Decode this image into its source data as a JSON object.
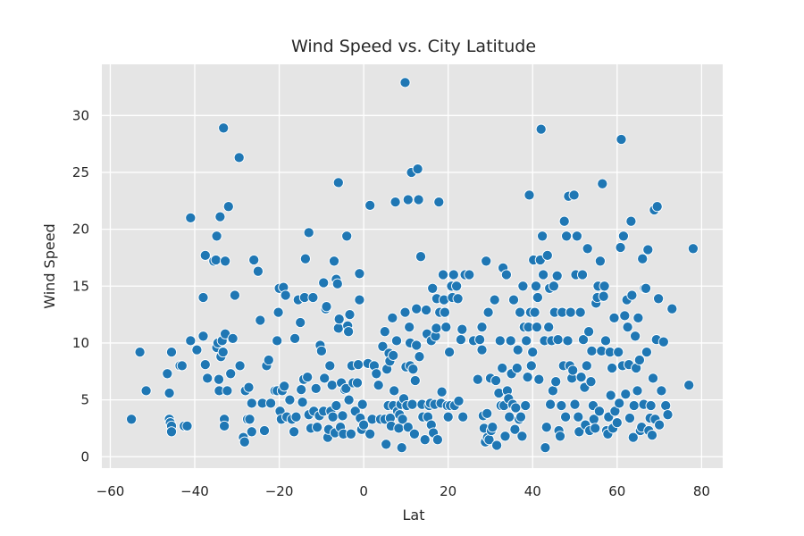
{
  "chart_data": {
    "type": "scatter",
    "title": "Wind Speed vs. City Latitude",
    "xlabel": "Lat",
    "ylabel": "Wind Speed",
    "xlim": [
      -62,
      85
    ],
    "ylim": [
      -1,
      34.5
    ],
    "xticks": [
      -60,
      -40,
      -20,
      0,
      20,
      40,
      60,
      80
    ],
    "yticks": [
      0,
      5,
      10,
      15,
      20,
      25,
      30
    ],
    "grid": true,
    "legend": "none",
    "colors": {
      "background": "#e5e5e5",
      "grid": "#ffffff",
      "marker": "#1f77b4",
      "marker_edge": "#ffffff"
    },
    "points": [
      [
        -55,
        3.3
      ],
      [
        -53,
        9.2
      ],
      [
        -51.5,
        5.8
      ],
      [
        -46.5,
        7.3
      ],
      [
        -46,
        5.6
      ],
      [
        -46,
        3.3
      ],
      [
        -45.8,
        3.0
      ],
      [
        -45.5,
        2.7
      ],
      [
        -45.5,
        2.2
      ],
      [
        -45.5,
        9.2
      ],
      [
        -43.5,
        8.0
      ],
      [
        -43,
        8.0
      ],
      [
        -42.5,
        2.7
      ],
      [
        -41.8,
        2.7
      ],
      [
        -41,
        10.2
      ],
      [
        -41,
        21.0
      ],
      [
        -39.5,
        9.4
      ],
      [
        -38,
        10.6
      ],
      [
        -38,
        14.0
      ],
      [
        -37.5,
        8.1
      ],
      [
        -37.5,
        17.7
      ],
      [
        -37,
        6.9
      ],
      [
        -35.5,
        17.2
      ],
      [
        -35,
        17.3
      ],
      [
        -34.8,
        19.4
      ],
      [
        -34.8,
        9.6
      ],
      [
        -34.5,
        10.0
      ],
      [
        -34.3,
        6.8
      ],
      [
        -34.2,
        5.8
      ],
      [
        -34,
        21.1
      ],
      [
        -33.8,
        8.8
      ],
      [
        -33.5,
        10.2
      ],
      [
        -33.3,
        9.2
      ],
      [
        -33.2,
        28.9
      ],
      [
        -33,
        3.3
      ],
      [
        -33,
        2.7
      ],
      [
        -32.8,
        17.2
      ],
      [
        -32.8,
        10.8
      ],
      [
        -32.3,
        5.8
      ],
      [
        -32,
        22.0
      ],
      [
        -31.5,
        7.3
      ],
      [
        -31,
        10.4
      ],
      [
        -30.5,
        14.2
      ],
      [
        -29.5,
        26.3
      ],
      [
        -29.3,
        8.0
      ],
      [
        -28.5,
        1.7
      ],
      [
        -28.2,
        1.3
      ],
      [
        -28,
        5.8
      ],
      [
        -27.5,
        3.3
      ],
      [
        -27.2,
        6.1
      ],
      [
        -27,
        3.3
      ],
      [
        -26.5,
        2.2
      ],
      [
        -26.5,
        4.7
      ],
      [
        -26,
        17.3
      ],
      [
        -25,
        16.3
      ],
      [
        -24.5,
        12.0
      ],
      [
        -24,
        4.7
      ],
      [
        -23.5,
        2.3
      ],
      [
        -23,
        8.0
      ],
      [
        -22.5,
        8.5
      ],
      [
        -22,
        4.7
      ],
      [
        -21,
        5.8
      ],
      [
        -20.5,
        10.2
      ],
      [
        -20.5,
        5.8
      ],
      [
        -20.2,
        12.7
      ],
      [
        -20,
        14.8
      ],
      [
        -19.8,
        4.0
      ],
      [
        -19.5,
        3.3
      ],
      [
        -19.3,
        5.8
      ],
      [
        -19,
        14.9
      ],
      [
        -18.8,
        6.2
      ],
      [
        -18.5,
        14.2
      ],
      [
        -18.2,
        3.5
      ],
      [
        -17.5,
        5.0
      ],
      [
        -17,
        3.3
      ],
      [
        -16.5,
        2.2
      ],
      [
        -16.3,
        10.4
      ],
      [
        -16,
        3.5
      ],
      [
        -15.5,
        13.8
      ],
      [
        -15,
        11.8
      ],
      [
        -14.8,
        5.9
      ],
      [
        -14.5,
        4.8
      ],
      [
        -14.2,
        6.8
      ],
      [
        -14,
        14.0
      ],
      [
        -13.8,
        17.4
      ],
      [
        -13.3,
        7.0
      ],
      [
        -13,
        19.7
      ],
      [
        -13,
        3.7
      ],
      [
        -12.5,
        2.5
      ],
      [
        -12,
        14.0
      ],
      [
        -11.8,
        4.0
      ],
      [
        -11.3,
        6.0
      ],
      [
        -11,
        2.6
      ],
      [
        -10.5,
        3.6
      ],
      [
        -10.3,
        9.8
      ],
      [
        -10,
        9.3
      ],
      [
        -9.5,
        4.0
      ],
      [
        -9.5,
        15.3
      ],
      [
        -9.3,
        6.9
      ],
      [
        -9,
        13.0
      ],
      [
        -8.8,
        13.2
      ],
      [
        -8.5,
        1.7
      ],
      [
        -8.3,
        2.4
      ],
      [
        -8,
        8.0
      ],
      [
        -7.8,
        4.0
      ],
      [
        -7.5,
        6.3
      ],
      [
        -7.3,
        3.5
      ],
      [
        -7,
        17.2
      ],
      [
        -6.8,
        2.1
      ],
      [
        -6.5,
        4.5
      ],
      [
        -6.5,
        15.6
      ],
      [
        -6.2,
        15.2
      ],
      [
        -6,
        24.1
      ],
      [
        -6,
        11.3
      ],
      [
        -5.8,
        12.1
      ],
      [
        -5.5,
        2.6
      ],
      [
        -5.3,
        6.5
      ],
      [
        -5,
        3.6
      ],
      [
        -4.8,
        2.0
      ],
      [
        -4.5,
        5.9
      ],
      [
        -4.2,
        6.0
      ],
      [
        -4,
        19.4
      ],
      [
        -3.8,
        11.5
      ],
      [
        -3.6,
        11.0
      ],
      [
        -3.5,
        5.0
      ],
      [
        -3.3,
        12.5
      ],
      [
        -3,
        2.0
      ],
      [
        -2.8,
        8.0
      ],
      [
        -2.5,
        6.5
      ],
      [
        -2,
        4.0
      ],
      [
        -1.5,
        6.5
      ],
      [
        -1.3,
        8.1
      ],
      [
        -1,
        16.1
      ],
      [
        -1,
        13.8
      ],
      [
        -0.8,
        3.4
      ],
      [
        -0.5,
        2.4
      ],
      [
        -0.3,
        4.6
      ],
      [
        0,
        2.8
      ],
      [
        1,
        8.2
      ],
      [
        1.5,
        22.1
      ],
      [
        1.5,
        2.0
      ],
      [
        2,
        3.3
      ],
      [
        2.5,
        8.0
      ],
      [
        3,
        7.3
      ],
      [
        3.5,
        6.3
      ],
      [
        4,
        3.3
      ],
      [
        4.5,
        9.7
      ],
      [
        5,
        3.3
      ],
      [
        5,
        11.0
      ],
      [
        5.3,
        1.1
      ],
      [
        5.5,
        7.7
      ],
      [
        5.8,
        4.5
      ],
      [
        6,
        9.1
      ],
      [
        6.2,
        8.4
      ],
      [
        6.3,
        3.4
      ],
      [
        6.5,
        2.7
      ],
      [
        6.8,
        12.2
      ],
      [
        7,
        4.5
      ],
      [
        7,
        8.9
      ],
      [
        7.2,
        5.8
      ],
      [
        7.5,
        22.4
      ],
      [
        7.8,
        10.2
      ],
      [
        8,
        4.0
      ],
      [
        8.3,
        2.5
      ],
      [
        8.5,
        3.7
      ],
      [
        8.8,
        4.6
      ],
      [
        9,
        0.8
      ],
      [
        9.2,
        3.3
      ],
      [
        9.5,
        5.1
      ],
      [
        9.8,
        12.7
      ],
      [
        9.8,
        32.9
      ],
      [
        10,
        7.9
      ],
      [
        10.2,
        4.5
      ],
      [
        10.5,
        22.6
      ],
      [
        10.5,
        2.6
      ],
      [
        10.8,
        11.4
      ],
      [
        11,
        10.0
      ],
      [
        11,
        8.0
      ],
      [
        11.3,
        25.0
      ],
      [
        11.5,
        4.6
      ],
      [
        11.7,
        7.7
      ],
      [
        12,
        2.0
      ],
      [
        12.2,
        6.7
      ],
      [
        12.5,
        9.8
      ],
      [
        12.5,
        13.0
      ],
      [
        12.8,
        25.3
      ],
      [
        13,
        22.6
      ],
      [
        13.2,
        8.8
      ],
      [
        13.5,
        17.6
      ],
      [
        13.8,
        4.6
      ],
      [
        14,
        3.5
      ],
      [
        14.5,
        1.5
      ],
      [
        14.8,
        12.9
      ],
      [
        15,
        10.8
      ],
      [
        15.2,
        3.5
      ],
      [
        15.5,
        4.5
      ],
      [
        15.8,
        4.7
      ],
      [
        16,
        2.8
      ],
      [
        16,
        10.2
      ],
      [
        16.3,
        14.8
      ],
      [
        16.5,
        2.1
      ],
      [
        16.8,
        4.6
      ],
      [
        17,
        10.6
      ],
      [
        17.2,
        11.3
      ],
      [
        17.3,
        13.9
      ],
      [
        17.5,
        1.5
      ],
      [
        17.8,
        22.4
      ],
      [
        18,
        12.7
      ],
      [
        18.3,
        4.7
      ],
      [
        18.5,
        5.7
      ],
      [
        18.8,
        16.0
      ],
      [
        19,
        13.8
      ],
      [
        19.2,
        12.7
      ],
      [
        19.5,
        11.4
      ],
      [
        19.8,
        4.5
      ],
      [
        20,
        3.5
      ],
      [
        20.3,
        9.2
      ],
      [
        20.5,
        4.5
      ],
      [
        20.8,
        15.0
      ],
      [
        21,
        14.0
      ],
      [
        21.3,
        16.0
      ],
      [
        21.5,
        4.5
      ],
      [
        22,
        15.0
      ],
      [
        22.3,
        13.9
      ],
      [
        22.5,
        4.9
      ],
      [
        23,
        10.3
      ],
      [
        23.3,
        11.2
      ],
      [
        23.5,
        3.5
      ],
      [
        24,
        16.0
      ],
      [
        25,
        16.0
      ],
      [
        26,
        10.2
      ],
      [
        27,
        6.8
      ],
      [
        27.5,
        10.3
      ],
      [
        28,
        9.4
      ],
      [
        28,
        11.4
      ],
      [
        28.3,
        3.6
      ],
      [
        28.5,
        2.5
      ],
      [
        28.8,
        1.3
      ],
      [
        29,
        17.2
      ],
      [
        29.2,
        3.8
      ],
      [
        29.3,
        1.7
      ],
      [
        29.5,
        12.7
      ],
      [
        29.7,
        1.5
      ],
      [
        30,
        6.9
      ],
      [
        30.2,
        2.3
      ],
      [
        30.5,
        2.6
      ],
      [
        31,
        13.8
      ],
      [
        31.3,
        6.7
      ],
      [
        31.5,
        1.0
      ],
      [
        32,
        5.6
      ],
      [
        32.3,
        10.2
      ],
      [
        32.5,
        4.5
      ],
      [
        32.8,
        7.8
      ],
      [
        33,
        16.6
      ],
      [
        33.2,
        4.5
      ],
      [
        33.5,
        1.8
      ],
      [
        33.8,
        16.0
      ],
      [
        34,
        5.8
      ],
      [
        34.3,
        5.1
      ],
      [
        34.5,
        3.5
      ],
      [
        34.8,
        10.2
      ],
      [
        35,
        7.3
      ],
      [
        35.3,
        4.6
      ],
      [
        35.5,
        13.8
      ],
      [
        35.8,
        2.4
      ],
      [
        36,
        4.3
      ],
      [
        36.3,
        7.8
      ],
      [
        36.5,
        9.4
      ],
      [
        36.8,
        3.3
      ],
      [
        37,
        12.7
      ],
      [
        37.2,
        3.5
      ],
      [
        37.5,
        1.8
      ],
      [
        37.7,
        15.0
      ],
      [
        38,
        11.4
      ],
      [
        38.3,
        4.5
      ],
      [
        38.5,
        10.2
      ],
      [
        38.8,
        7.0
      ],
      [
        39,
        11.4
      ],
      [
        39.2,
        23.0
      ],
      [
        39.5,
        12.7
      ],
      [
        39.7,
        8.0
      ],
      [
        40,
        9.2
      ],
      [
        40.2,
        17.3
      ],
      [
        40.5,
        12.7
      ],
      [
        40.8,
        15.0
      ],
      [
        41,
        11.4
      ],
      [
        41.2,
        14.0
      ],
      [
        41.5,
        6.8
      ],
      [
        41.8,
        17.3
      ],
      [
        42,
        28.8
      ],
      [
        42.3,
        19.4
      ],
      [
        42.5,
        16.0
      ],
      [
        42.8,
        10.2
      ],
      [
        43,
        0.8
      ],
      [
        43.3,
        2.6
      ],
      [
        43.5,
        17.7
      ],
      [
        43.8,
        11.4
      ],
      [
        44,
        14.8
      ],
      [
        44.2,
        4.6
      ],
      [
        44.5,
        10.2
      ],
      [
        44.8,
        5.8
      ],
      [
        45,
        15.0
      ],
      [
        45.2,
        12.7
      ],
      [
        45.5,
        6.6
      ],
      [
        45.8,
        15.9
      ],
      [
        46,
        10.3
      ],
      [
        46.2,
        2.3
      ],
      [
        46.5,
        1.8
      ],
      [
        46.8,
        4.5
      ],
      [
        47,
        12.7
      ],
      [
        47.3,
        8.0
      ],
      [
        47.5,
        20.7
      ],
      [
        47.8,
        3.5
      ],
      [
        48,
        19.4
      ],
      [
        48.3,
        10.2
      ],
      [
        48.5,
        22.9
      ],
      [
        48.8,
        8.0
      ],
      [
        49,
        12.7
      ],
      [
        49.3,
        6.9
      ],
      [
        49.5,
        7.6
      ],
      [
        49.8,
        23.0
      ],
      [
        50,
        4.6
      ],
      [
        50.2,
        16.0
      ],
      [
        50.5,
        19.4
      ],
      [
        50.8,
        3.5
      ],
      [
        51,
        2.2
      ],
      [
        51.3,
        12.7
      ],
      [
        51.5,
        7.0
      ],
      [
        51.8,
        16.0
      ],
      [
        52,
        10.3
      ],
      [
        52.3,
        6.1
      ],
      [
        52.5,
        2.8
      ],
      [
        52.8,
        8.0
      ],
      [
        53,
        18.3
      ],
      [
        53.3,
        11.0
      ],
      [
        53.5,
        2.3
      ],
      [
        53.8,
        6.6
      ],
      [
        54,
        9.3
      ],
      [
        54.3,
        4.5
      ],
      [
        54.5,
        3.3
      ],
      [
        54.8,
        2.5
      ],
      [
        55,
        13.5
      ],
      [
        55.3,
        14.0
      ],
      [
        55.5,
        15.0
      ],
      [
        55.8,
        4.0
      ],
      [
        56,
        17.2
      ],
      [
        56.3,
        9.3
      ],
      [
        56.5,
        24.0
      ],
      [
        56.8,
        14.1
      ],
      [
        57,
        15.0
      ],
      [
        57.3,
        10.2
      ],
      [
        57.5,
        2.3
      ],
      [
        57.8,
        2.0
      ],
      [
        58,
        3.5
      ],
      [
        58.3,
        9.2
      ],
      [
        58.5,
        5.4
      ],
      [
        58.8,
        7.8
      ],
      [
        59,
        2.5
      ],
      [
        59.3,
        12.2
      ],
      [
        59.5,
        4.0
      ],
      [
        60,
        3.0
      ],
      [
        60.3,
        9.2
      ],
      [
        60.5,
        4.7
      ],
      [
        60.8,
        18.4
      ],
      [
        61,
        27.9
      ],
      [
        61.3,
        8.0
      ],
      [
        61.5,
        19.4
      ],
      [
        61.8,
        12.4
      ],
      [
        62,
        5.5
      ],
      [
        62.3,
        13.8
      ],
      [
        62.5,
        11.4
      ],
      [
        62.8,
        8.1
      ],
      [
        63,
        3.4
      ],
      [
        63.3,
        20.7
      ],
      [
        63.5,
        14.2
      ],
      [
        63.8,
        1.7
      ],
      [
        64,
        4.5
      ],
      [
        64.3,
        10.6
      ],
      [
        64.5,
        7.8
      ],
      [
        64.8,
        5.8
      ],
      [
        65,
        12.2
      ],
      [
        65.3,
        8.5
      ],
      [
        65.5,
        2.3
      ],
      [
        65.8,
        2.6
      ],
      [
        66,
        17.4
      ],
      [
        66.3,
        4.6
      ],
      [
        66.5,
        14.8
      ],
      [
        66.8,
        14.8
      ],
      [
        67,
        9.2
      ],
      [
        67.3,
        18.2
      ],
      [
        67.5,
        2.3
      ],
      [
        67.8,
        3.4
      ],
      [
        68,
        4.5
      ],
      [
        68.3,
        1.9
      ],
      [
        68.5,
        6.9
      ],
      [
        68.8,
        21.7
      ],
      [
        69,
        3.3
      ],
      [
        69.3,
        10.3
      ],
      [
        69.5,
        22.0
      ],
      [
        69.8,
        13.9
      ],
      [
        70,
        2.8
      ],
      [
        70.5,
        5.8
      ],
      [
        71,
        10.1
      ],
      [
        71.5,
        4.5
      ],
      [
        72,
        3.7
      ],
      [
        73,
        13.0
      ],
      [
        77,
        6.3
      ],
      [
        78,
        18.3
      ]
    ]
  }
}
